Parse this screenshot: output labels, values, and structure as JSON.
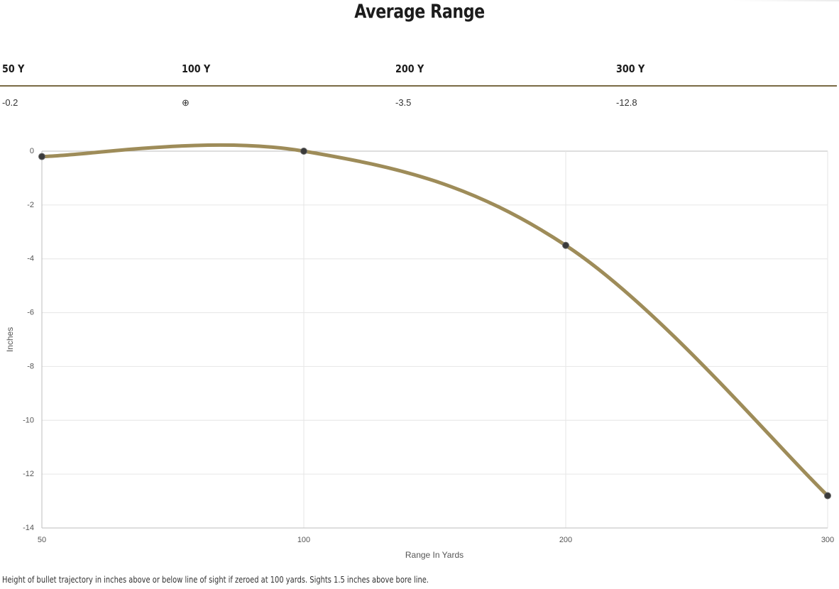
{
  "title": "Average Range",
  "range_table": {
    "headers": [
      "50 Y",
      "100 Y",
      "200 Y",
      "300 Y"
    ],
    "values": [
      "-0.2",
      "⊕",
      "-3.5",
      "-12.8"
    ]
  },
  "footnote": "Height of bullet trajectory in inches above or below line of sight if zeroed at 100 yards. Sights 1.5 inches above bore line.",
  "colors": {
    "line": "#9e8c59",
    "point": "#3a3a3a",
    "divider": "#7a6a45",
    "grid": "#e6e6e6"
  },
  "chart_data": {
    "type": "line",
    "title": "",
    "xlabel": "Range In Yards",
    "ylabel": "Inches",
    "x": [
      50,
      100,
      200,
      300
    ],
    "series": [
      {
        "values": [
          -0.2,
          0,
          -3.5,
          -12.8
        ]
      }
    ],
    "xticks": [
      50,
      100,
      200,
      300
    ],
    "yticks": [
      0,
      -2,
      -4,
      -6,
      -8,
      -10,
      -12,
      -14
    ],
    "xlim": [
      50,
      300
    ],
    "ylim": [
      -14,
      0
    ],
    "grid": true,
    "legend": "none"
  }
}
